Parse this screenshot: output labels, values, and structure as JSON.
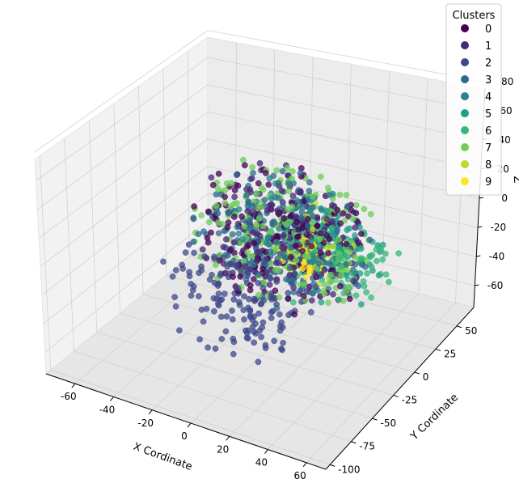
{
  "chart_data": {
    "type": "scatter3d",
    "title": "",
    "xlabel": "X Cordinate",
    "ylabel": "Y Cordinate",
    "zlabel": "Z",
    "xlim": [
      -75,
      70
    ],
    "ylim": [
      -105,
      70
    ],
    "zlim": [
      -75,
      75
    ],
    "xticks": [
      -60,
      -40,
      -20,
      0,
      20,
      40,
      60
    ],
    "yticks": [
      -100,
      -75,
      -50,
      -25,
      0,
      25,
      50
    ],
    "zticks": [
      -60,
      -40,
      -20,
      0,
      20,
      40,
      60,
      80
    ],
    "ztick_labels": [
      "-60",
      "-40",
      "-20",
      "0",
      "20",
      "40",
      "60",
      "80"
    ],
    "grid": true,
    "legend": {
      "title": "Clusters",
      "placement": "top-right",
      "entries": [
        "0",
        "1",
        "2",
        "3",
        "4",
        "5",
        "6",
        "7",
        "8",
        "9"
      ]
    },
    "cluster_colors": [
      "#440154",
      "#482878",
      "#3e4989",
      "#31688e",
      "#26828e",
      "#1f9e89",
      "#35b779",
      "#6ece58",
      "#b5de2b",
      "#fde725"
    ],
    "series": [
      {
        "name": "0",
        "approx_center": [
          0,
          0,
          0
        ],
        "spread": 45,
        "count": 190
      },
      {
        "name": "1",
        "approx_center": [
          0,
          0,
          0
        ],
        "spread": 45,
        "count": 120
      },
      {
        "name": "2",
        "approx_center": [
          -10,
          -30,
          -30
        ],
        "spread": 40,
        "count": 170
      },
      {
        "name": "3",
        "approx_center": [
          0,
          0,
          0
        ],
        "spread": 45,
        "count": 170
      },
      {
        "name": "4",
        "approx_center": [
          5,
          5,
          0
        ],
        "spread": 35,
        "count": 110
      },
      {
        "name": "5",
        "approx_center": [
          20,
          10,
          -10
        ],
        "spread": 30,
        "count": 80
      },
      {
        "name": "6",
        "approx_center": [
          20,
          10,
          -10
        ],
        "spread": 35,
        "count": 90
      },
      {
        "name": "7",
        "approx_center": [
          0,
          0,
          0
        ],
        "spread": 48,
        "count": 210
      },
      {
        "name": "8",
        "approx_center": [
          15,
          10,
          -5
        ],
        "spread": 25,
        "count": 25
      },
      {
        "name": "9",
        "approx_center": [
          10,
          0,
          -10
        ],
        "spread": 15,
        "count": 70
      }
    ]
  }
}
